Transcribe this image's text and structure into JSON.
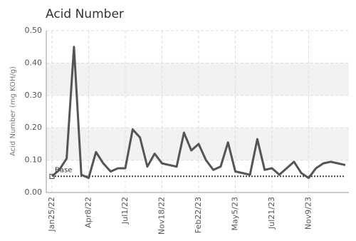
{
  "chart_data": {
    "type": "line",
    "title": "Acid Number",
    "y_label": "Acid Number (mg KOH/g)",
    "categories": [
      "Jan25/22",
      null,
      null,
      null,
      null,
      "Apr8/22",
      null,
      null,
      null,
      null,
      "Jul1/22",
      null,
      null,
      null,
      null,
      "Nov18/22",
      null,
      null,
      null,
      null,
      "Feb22/23",
      null,
      null,
      null,
      null,
      "May5/23",
      null,
      null,
      null,
      null,
      "Jul21/23",
      null,
      null,
      null,
      null,
      "Nov9/23",
      null,
      null,
      null,
      null,
      null
    ],
    "values": [
      0.05,
      0.07,
      0.105,
      0.45,
      0.055,
      0.045,
      0.125,
      0.09,
      0.065,
      0.075,
      0.075,
      0.195,
      0.17,
      0.08,
      0.12,
      0.09,
      0.085,
      0.08,
      0.185,
      0.13,
      0.15,
      0.1,
      0.07,
      0.08,
      0.155,
      0.065,
      0.06,
      0.055,
      0.165,
      0.07,
      0.075,
      0.055,
      0.075,
      0.095,
      0.06,
      0.045,
      0.075,
      0.09,
      0.095,
      0.09,
      0.085
    ],
    "color": "#555555",
    "baseline": {
      "label": "Base",
      "value": 0.05
    },
    "ylim": [
      0,
      0.5
    ],
    "yticks": [
      {
        "value": 0,
        "label": "0.00"
      },
      {
        "value": 0.1,
        "label": "0.10"
      },
      {
        "value": 0.2,
        "label": "0.20"
      },
      {
        "value": 0.3,
        "label": "0.30"
      },
      {
        "value": 0.4,
        "label": "0.40"
      },
      {
        "value": 0.5,
        "label": "0.50"
      }
    ],
    "grid": true
  }
}
